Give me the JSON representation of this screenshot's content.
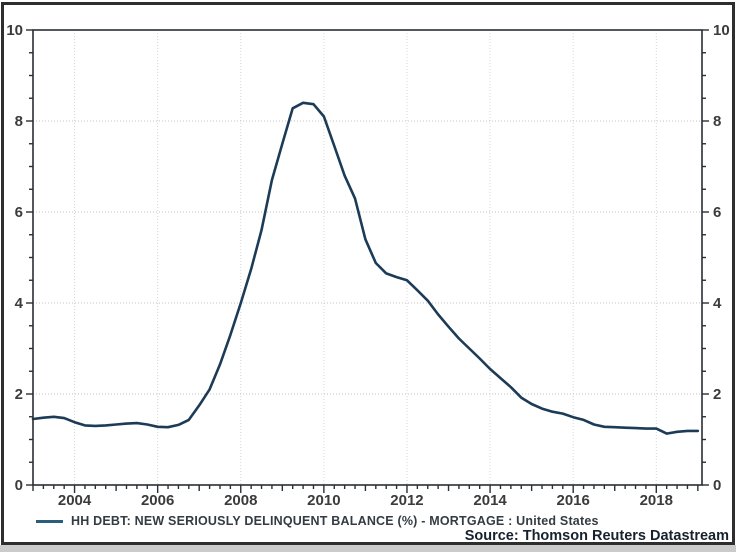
{
  "window": {
    "background": "#ffffff",
    "border_color": "#2e2e2e",
    "bottom_strip_color": "#cbcbcb"
  },
  "legend": {
    "label": "HH DEBT: NEW SERIOUSLY DELINQUENT BALANCE (%) - MORTGAGE : United States",
    "marker_color": "#2d5d7d"
  },
  "source": {
    "label": "Source: Thomson Reuters Datastream"
  },
  "colors": {
    "series_line": "#1c3b57",
    "frame_and_ticks": "#2a2f35",
    "horizontal_grid": "#c0c0c0",
    "vertical_grid": "#d6d6d6",
    "axis_label_text": "#3b3b3b"
  },
  "chart_data": {
    "type": "line",
    "title": "",
    "xlabel": "",
    "ylabel": "",
    "xlim": [
      2003.0,
      2019.1
    ],
    "ylim": [
      0,
      10
    ],
    "grid": {
      "horizontal": "dotted",
      "vertical": "dotted"
    },
    "axes_mirrored_right": true,
    "legend_position": "bottom-left",
    "y_axis": {
      "major_step": 2,
      "minor_step": 0.5,
      "tick_labels": [
        "0",
        "2",
        "4",
        "6",
        "8",
        "10"
      ],
      "tick_values": [
        0,
        2,
        4,
        6,
        8,
        10
      ]
    },
    "x_axis": {
      "labeled_years": [
        2004,
        2006,
        2008,
        2010,
        2012,
        2014,
        2016,
        2018
      ],
      "tick_labels": [
        "2004",
        "2006",
        "2008",
        "2010",
        "2012",
        "2014",
        "2016",
        "2018"
      ],
      "minor_step_years": 0.25
    },
    "series": [
      {
        "name": "HH DEBT: NEW SERIOUSLY DELINQUENT BALANCE (%) - MORTGAGE : United States",
        "color": "#1c3b57",
        "x_start": 2003.0,
        "x_step": 0.25,
        "x_unit": "year (quarterly)",
        "values": [
          1.45,
          1.48,
          1.5,
          1.47,
          1.38,
          1.31,
          1.3,
          1.31,
          1.33,
          1.35,
          1.36,
          1.33,
          1.28,
          1.27,
          1.32,
          1.43,
          1.75,
          2.1,
          2.65,
          3.3,
          4.0,
          4.75,
          5.6,
          6.7,
          7.5,
          8.28,
          8.4,
          8.37,
          8.1,
          7.45,
          6.8,
          6.3,
          5.4,
          4.88,
          4.65,
          4.57,
          4.5,
          4.28,
          4.05,
          3.75,
          3.48,
          3.22,
          3.0,
          2.78,
          2.55,
          2.35,
          2.15,
          1.92,
          1.78,
          1.68,
          1.61,
          1.57,
          1.49,
          1.43,
          1.33,
          1.28,
          1.27,
          1.26,
          1.25,
          1.24,
          1.24,
          1.13,
          1.17,
          1.19,
          1.19
        ]
      }
    ]
  }
}
